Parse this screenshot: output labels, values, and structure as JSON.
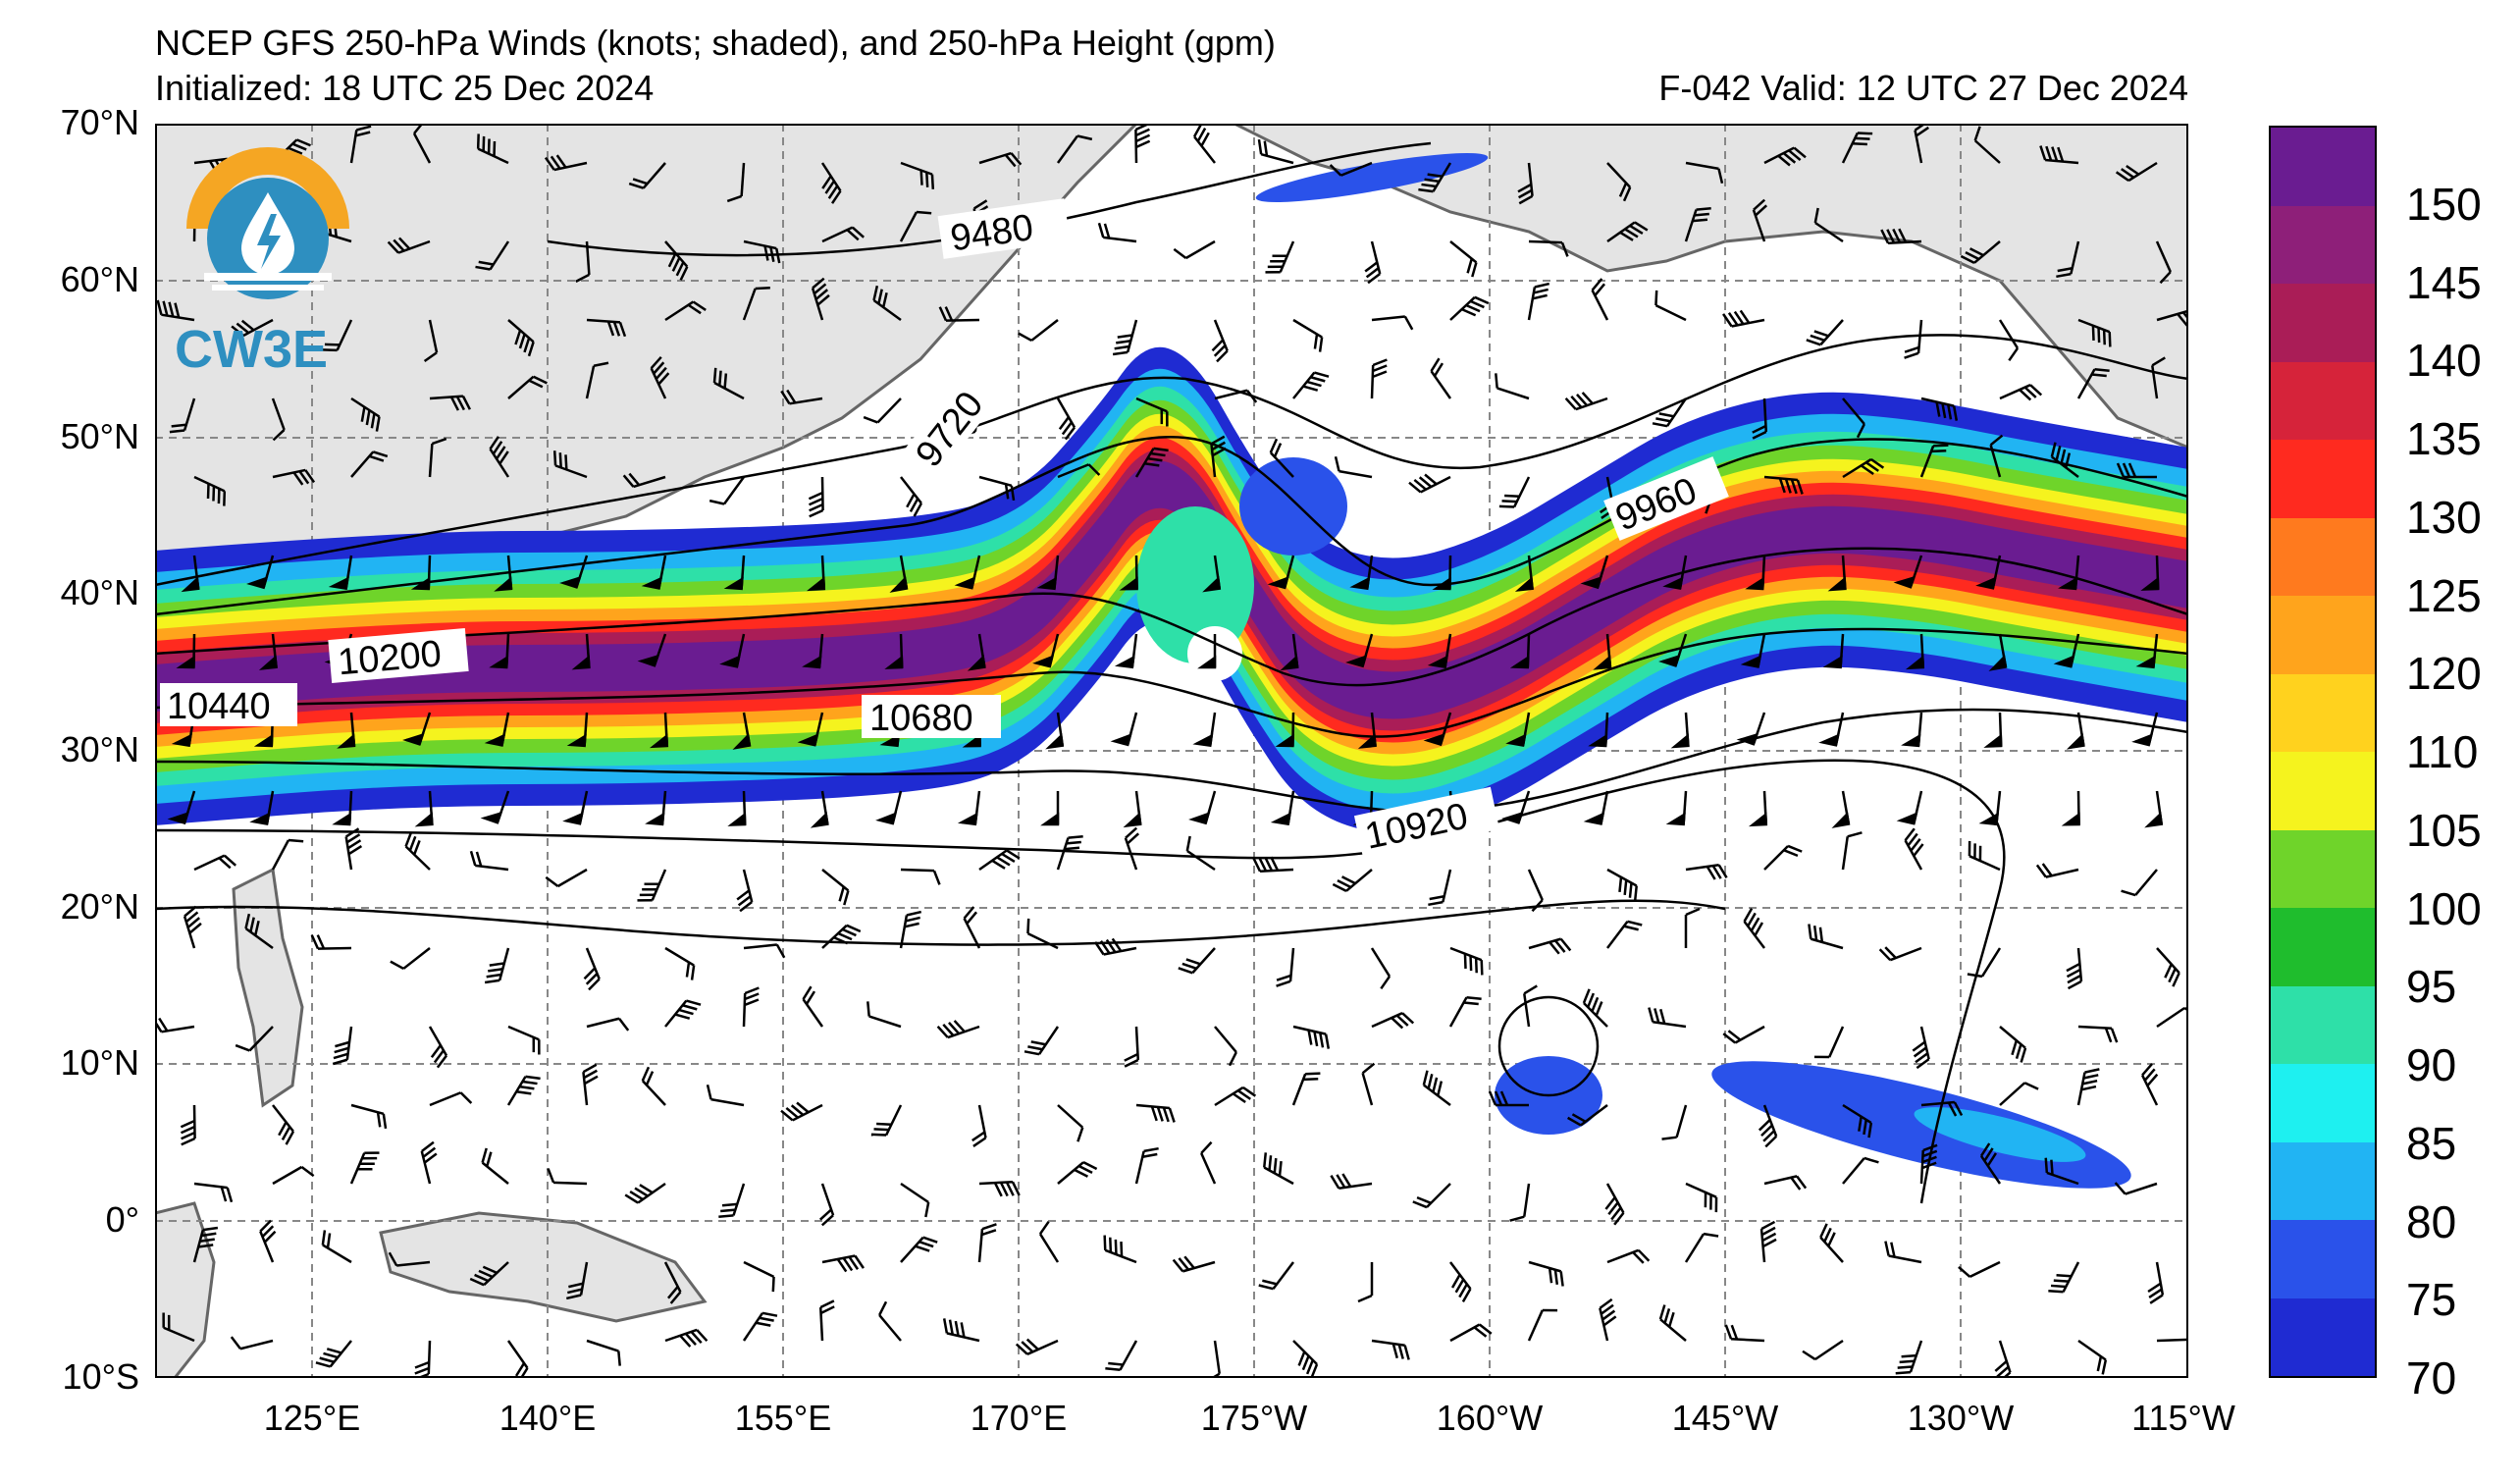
{
  "header": {
    "title": "NCEP GFS 250-hPa Winds (knots; shaded), and 250-hPa Height (gpm)",
    "initialized": "Initialized: 18 UTC 25 Dec 2024",
    "valid": "F-042  Valid: 12 UTC 27 Dec 2024"
  },
  "logo": {
    "text": "CW3E",
    "icon": "water-drop-lightning-icon"
  },
  "axes": {
    "lat_labels": [
      "70°N",
      "60°N",
      "50°N",
      "40°N",
      "30°N",
      "20°N",
      "10°N",
      "0°",
      "10°S"
    ],
    "lon_labels": [
      "125°E",
      "140°E",
      "155°E",
      "170°E",
      "175°W",
      "160°W",
      "145°W",
      "130°W",
      "115°W"
    ]
  },
  "contour_labels": [
    "9480",
    "9720",
    "9960",
    "10200",
    "10440",
    "10680",
    "10920"
  ],
  "colorbar": {
    "labels": [
      "70",
      "75",
      "80",
      "85",
      "90",
      "95",
      "100",
      "105",
      "110",
      "120",
      "125",
      "130",
      "135",
      "140",
      "145",
      "150"
    ],
    "colors": [
      "#1f2bd2",
      "#2a52ea",
      "#21b4f3",
      "#1ef0f0",
      "#2ee0a8",
      "#1fbd2d",
      "#6fd42a",
      "#f5f31e",
      "#ffd21e",
      "#ffa41c",
      "#ff7a1e",
      "#ff2a1f",
      "#d6233a",
      "#aa1d57",
      "#8e1f79",
      "#6a1c91"
    ]
  },
  "map": {
    "land_color": "#e4e4e4",
    "jet_bands": [
      "#1f2bd2",
      "#21b4f3",
      "#2ee0a8",
      "#6fd42a",
      "#f5f31e",
      "#ffa41c",
      "#ff2a1f",
      "#aa1d57",
      "#6a1c91"
    ]
  }
}
